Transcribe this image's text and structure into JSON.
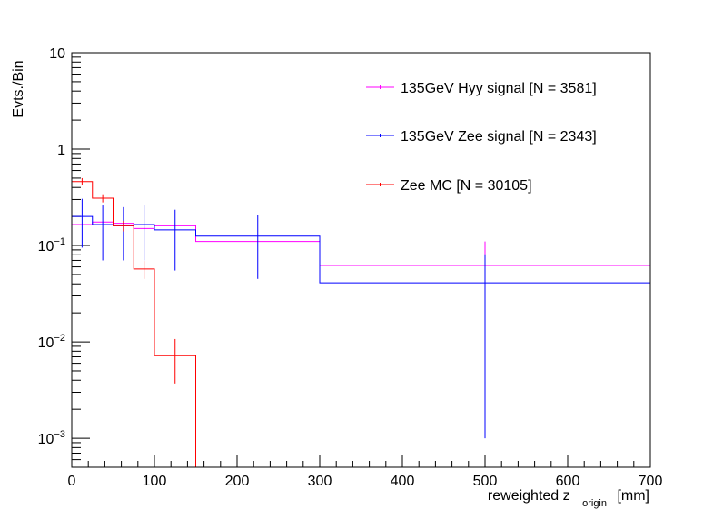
{
  "chart_data": {
    "type": "histogram",
    "title": "",
    "xlabel": {
      "main": "reweighted z",
      "sub": "origin",
      "unit": "[mm]"
    },
    "ylabel": "Evts./Bin",
    "xlim": [
      0,
      700
    ],
    "ylim": [
      0.0005,
      10
    ],
    "yscale": "log",
    "x_ticks": [
      0,
      100,
      200,
      300,
      400,
      500,
      600,
      700
    ],
    "y_ticks": [
      {
        "value": 10,
        "label": "10",
        "exp": ""
      },
      {
        "value": 1,
        "label": "1",
        "exp": ""
      },
      {
        "value": 0.1,
        "label": "10",
        "exp": "−1"
      },
      {
        "value": 0.01,
        "label": "10",
        "exp": "−2"
      },
      {
        "value": 0.001,
        "label": "10",
        "exp": "−3"
      }
    ],
    "bin_edges": [
      0,
      25,
      50,
      75,
      100,
      150,
      300,
      700
    ],
    "legend_position": "top-right",
    "series": [
      {
        "name": "135GeV Hyy signal [N = 3581]",
        "color": "#ff00ff",
        "values": [
          0.165,
          0.175,
          0.17,
          0.15,
          0.16,
          0.11,
          0.062
        ],
        "errors": [
          0,
          0,
          0,
          0,
          0,
          0,
          0.048
        ]
      },
      {
        "name": "135GeV Zee signal [N = 2343]",
        "color": "#0000ff",
        "values": [
          0.2,
          0.165,
          0.16,
          0.165,
          0.145,
          0.125,
          0.041
        ],
        "errors": [
          0.105,
          0.095,
          0.09,
          0.095,
          0.09,
          0.08,
          0.04
        ]
      },
      {
        "name": "Zee MC [N = 30105]",
        "color": "#ff0000",
        "values": [
          0.46,
          0.31,
          0.16,
          0.057,
          0.0072,
          0,
          0
        ],
        "errors": [
          0.04,
          0.03,
          0.02,
          0.012,
          0.0035,
          0,
          0
        ]
      }
    ]
  }
}
